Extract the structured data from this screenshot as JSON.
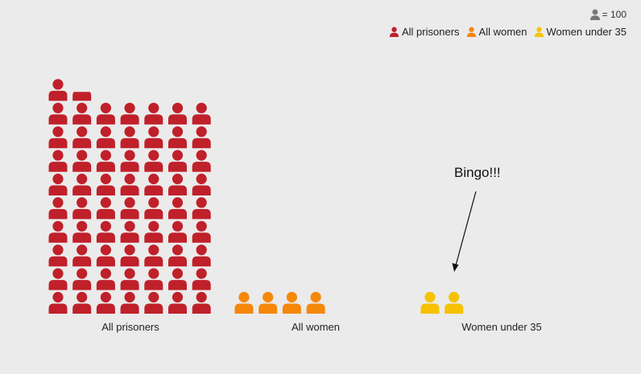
{
  "legend": {
    "unit_value": "= 100",
    "unit_color": "#777777",
    "items": [
      {
        "label": "All prisoners",
        "color": "#c0202a"
      },
      {
        "label": "All women",
        "color": "#f5870b"
      },
      {
        "label": "Women under 35",
        "color": "#f6c200"
      }
    ]
  },
  "annotation": {
    "text": "Bingo!!!"
  },
  "chart_data": {
    "type": "pictogram",
    "unit": 100,
    "categories": [
      "All prisoners",
      "All women",
      "Women under 35"
    ],
    "values": [
      6440,
      400,
      200
    ],
    "colors": [
      "#c0202a",
      "#f5870b",
      "#f6c200"
    ],
    "annotations": [
      {
        "text": "Bingo!!!",
        "target": "Women under 35"
      }
    ],
    "grid": false
  }
}
